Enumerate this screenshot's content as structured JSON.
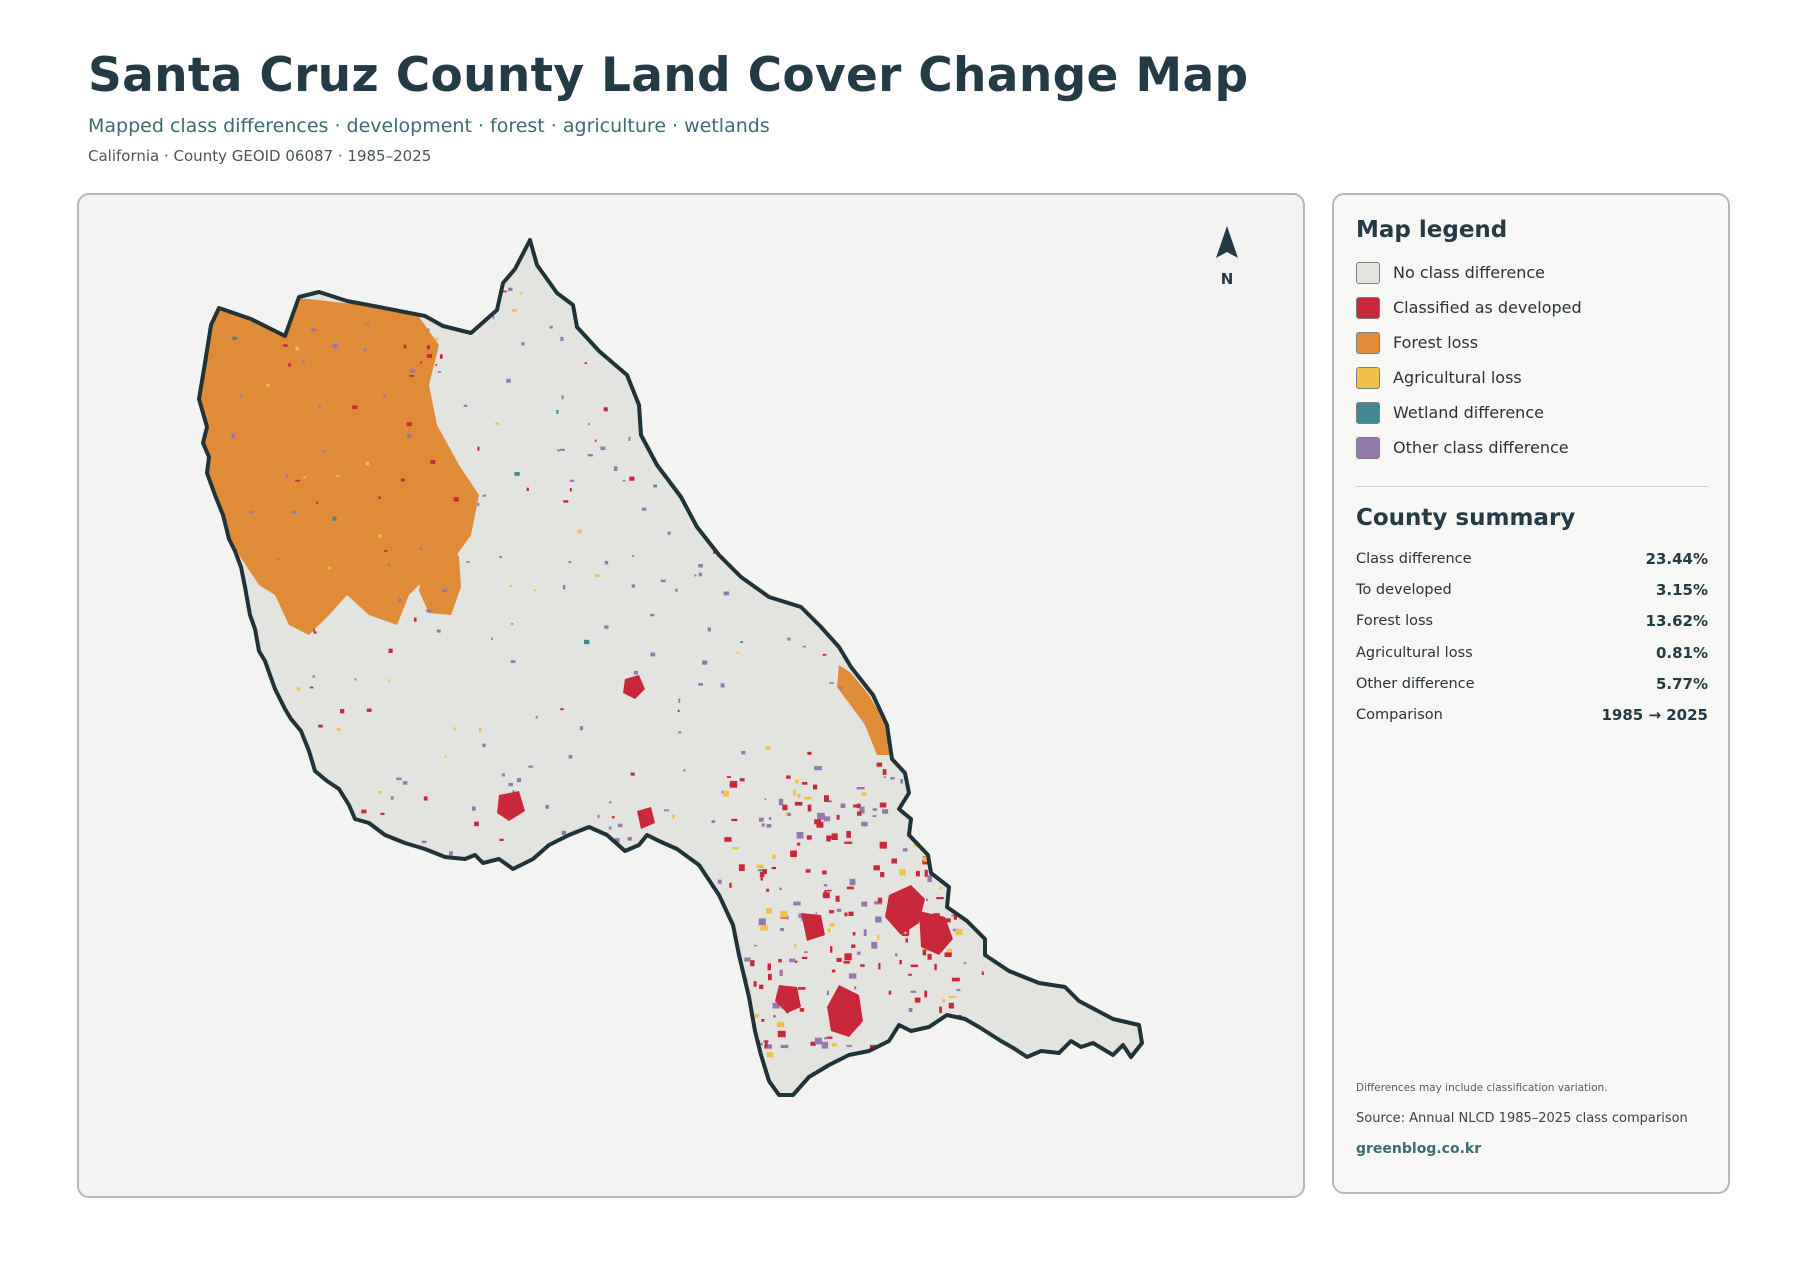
{
  "header": {
    "title": "Santa Cruz County Land Cover Change Map",
    "subtitle": "Mapped class differences · development · forest · agriculture · wetlands",
    "meta": "California · County GEOID 06087 · 1985–2025"
  },
  "map": {
    "north_label": "N",
    "colors": {
      "no_change": "#e3e3df",
      "developed": "#c8283a",
      "forest_loss": "#e08b38",
      "agricultural_loss": "#f0c24a",
      "wetland": "#3f8a92",
      "other": "#9479ad",
      "boundary": "#1f3339"
    }
  },
  "legend": {
    "title": "Map legend",
    "items": [
      {
        "label": "No class difference",
        "color": "#e3e3df"
      },
      {
        "label": "Classified as developed",
        "color": "#c8283a"
      },
      {
        "label": "Forest loss",
        "color": "#e08b38"
      },
      {
        "label": "Agricultural loss",
        "color": "#f0c24a"
      },
      {
        "label": "Wetland difference",
        "color": "#3f8a92"
      },
      {
        "label": "Other class difference",
        "color": "#9479ad"
      }
    ]
  },
  "summary": {
    "title": "County summary",
    "rows": [
      {
        "label": "Class difference",
        "value": "23.44%"
      },
      {
        "label": "To developed",
        "value": "3.15%"
      },
      {
        "label": "Forest loss",
        "value": "13.62%"
      },
      {
        "label": "Agricultural loss",
        "value": "0.81%"
      },
      {
        "label": "Other difference",
        "value": "5.77%"
      },
      {
        "label": "Comparison",
        "value": "1985 → 2025"
      }
    ]
  },
  "footer": {
    "note": "Differences may include classification variation.",
    "source": "Source: Annual NLCD 1985–2025 class comparison",
    "credit": "greenblog.co.kr"
  }
}
